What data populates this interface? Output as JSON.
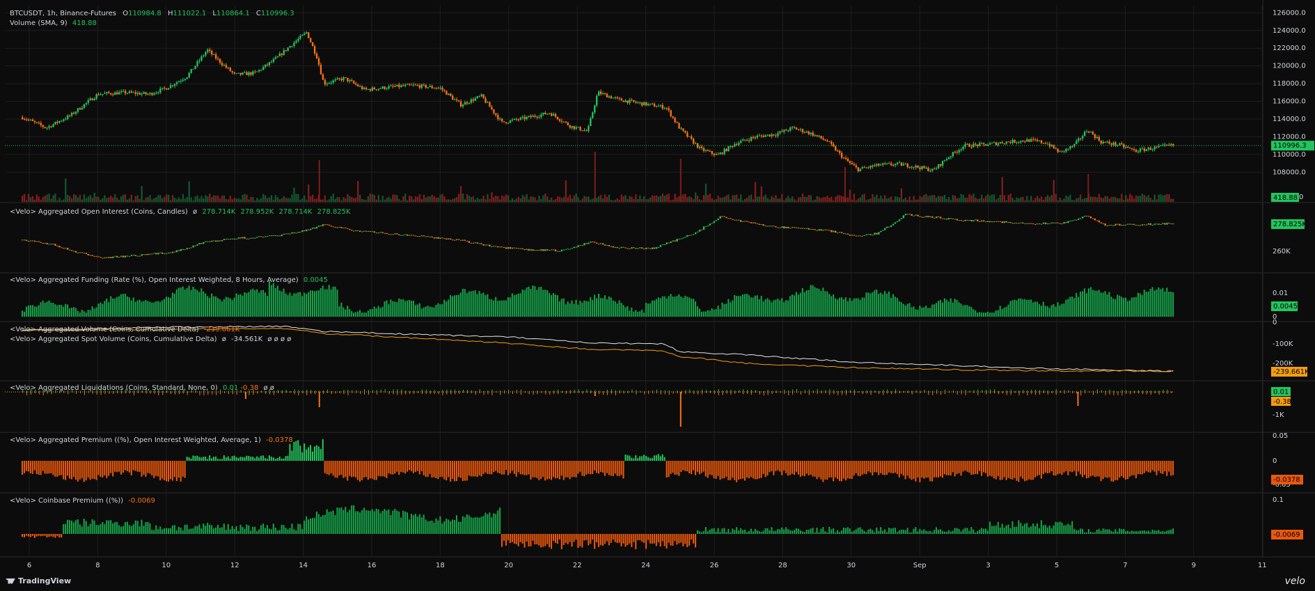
{
  "header": {
    "symbol": "BTCUSDT, 1h, Binance-Futures",
    "open_label": "O",
    "open": "110984.8",
    "high_label": "H",
    "high": "111022.1",
    "low_label": "L",
    "low": "110864.1",
    "close_label": "C",
    "close": "110996.3",
    "volume_title": "Volume (SMA, 9)",
    "volume_value": "418.88"
  },
  "legends": {
    "oi": {
      "title": "<Velo> Aggregated Open Interest (Coins, Candles)",
      "sym": "ø",
      "values": [
        "278.714K",
        "278.952K",
        "278.714K",
        "278.825K"
      ]
    },
    "funding": {
      "title": "<Velo> Aggregated Funding (Rate (%), Open Interest Weighted, 8 Hours, Average)",
      "value": "0.0045"
    },
    "volume_delta": {
      "title": "<Velo> Aggregated Volume (Coins, Cumulative Delta)",
      "value": "-239.661K"
    },
    "spot_delta": {
      "title": "<Velo> Aggregated Spot Volume (Coins, Cumulative Delta)",
      "sym": "ø",
      "value": "-34.561K",
      "zeros": "ø ø ø ø"
    },
    "liquidations": {
      "title": "<Velo> Aggregated Liquidations (Coins, Standard, None, 0)",
      "value1": "0.01",
      "value2": "-0.38",
      "zeros": "ø ø"
    },
    "premium": {
      "title": "<Velo> Aggregated Premium ((%), Open Interest Weighted, Average, 1)",
      "value": "-0.0378"
    },
    "coinbase": {
      "title": "<Velo> Coinbase Premium ((%))",
      "value": "-0.0069"
    }
  },
  "colors": {
    "bg": "#0c0c0c",
    "up": "#22c55e",
    "down": "#f97316",
    "grid": "#1e1e1e",
    "white_line": "#e5e5e5",
    "orange_line": "#f59e0b",
    "red_vol": "#7f1d1d",
    "green_vol": "#14532d"
  },
  "price_axis": {
    "ticks": [
      "126000.0",
      "124000.0",
      "122000.0",
      "120000.0",
      "118000.0",
      "116000.0",
      "114000.0",
      "112000.0",
      "110000.0",
      "108000.0"
    ],
    "current_tag": "110996.3",
    "volume_tag": "418.88",
    "volume_zero": "0"
  },
  "oi_axis": {
    "ticks": [
      "260K"
    ],
    "tag": "278.825K"
  },
  "funding_axis": {
    "ticks": [
      "0.01"
    ],
    "zero": "0",
    "tag": "0.0045"
  },
  "delta_axis": {
    "ticks": [
      "0",
      "-100K",
      "-200K"
    ],
    "tag": "-239.661K"
  },
  "liq_axis": {
    "ticks": [
      "-1K"
    ],
    "tag_up": "0.01",
    "tag_down": "-0.38"
  },
  "premium_axis": {
    "ticks": [
      "0.05",
      "0",
      "-0.05"
    ],
    "tag": "-0.0378"
  },
  "coinbase_axis": {
    "ticks": [
      "0.1",
      "0"
    ],
    "tag": "-0.0069"
  },
  "time_axis": {
    "labels": [
      "6",
      "8",
      "10",
      "12",
      "14",
      "16",
      "18",
      "20",
      "22",
      "24",
      "26",
      "28",
      "30",
      "Sep",
      "3",
      "5",
      "7",
      "9",
      "11"
    ]
  },
  "chart_data": {
    "type": "candlestick",
    "timeframe": "1h",
    "x_labels": [
      "6",
      "8",
      "10",
      "12",
      "14",
      "16",
      "18",
      "20",
      "22",
      "24",
      "26",
      "28",
      "30",
      "Sep",
      "3",
      "5",
      "7",
      "9",
      "11"
    ],
    "price_ylim": [
      107000,
      126500
    ],
    "price_path_approx": [
      {
        "x": "6",
        "y": 114200
      },
      {
        "x": "8",
        "y": 116800
      },
      {
        "x": "10",
        "y": 117500
      },
      {
        "x": "11",
        "y": 121500
      },
      {
        "x": "12",
        "y": 119000
      },
      {
        "x": "13",
        "y": 120800
      },
      {
        "x": "14",
        "y": 123800
      },
      {
        "x": "14.5",
        "y": 118000
      },
      {
        "x": "16",
        "y": 117300
      },
      {
        "x": "18",
        "y": 117500
      },
      {
        "x": "19",
        "y": 116500
      },
      {
        "x": "20",
        "y": 113500
      },
      {
        "x": "21",
        "y": 114700
      },
      {
        "x": "22",
        "y": 112500
      },
      {
        "x": "22.5",
        "y": 117000
      },
      {
        "x": "24",
        "y": 115500
      },
      {
        "x": "25",
        "y": 112500
      },
      {
        "x": "26",
        "y": 109800
      },
      {
        "x": "27",
        "y": 112000
      },
      {
        "x": "28",
        "y": 113000
      },
      {
        "x": "29",
        "y": 111500
      },
      {
        "x": "30",
        "y": 108300
      },
      {
        "x": "31",
        "y": 108700
      },
      {
        "x": "Sep 1",
        "y": 108000
      },
      {
        "x": "2",
        "y": 111000
      },
      {
        "x": "3",
        "y": 111300
      },
      {
        "x": "4",
        "y": 111500
      },
      {
        "x": "5",
        "y": 110200
      },
      {
        "x": "5.5",
        "y": 112800
      },
      {
        "x": "6",
        "y": 111000
      },
      {
        "x": "7",
        "y": 110400
      },
      {
        "x": "8",
        "y": 111000
      }
    ],
    "last_close": 110996.3,
    "series": [
      {
        "name": "Volume (SMA, 9)",
        "last": 418.88
      },
      {
        "name": "<Velo> Aggregated Open Interest (Coins, Candles)",
        "last": 278825
      },
      {
        "name": "<Velo> Aggregated Funding (Rate (%), Open Interest Weighted, 8 Hours, Average)",
        "last": 0.0045
      },
      {
        "name": "<Velo> Aggregated Volume (Coins, Cumulative Delta)",
        "last": -239661
      },
      {
        "name": "<Velo> Aggregated Spot Volume (Coins, Cumulative Delta)",
        "last": -34561
      },
      {
        "name": "<Velo> Aggregated Liquidations (Coins, Standard, None, 0)",
        "last_up": 0.01,
        "last_down": -0.38
      },
      {
        "name": "<Velo> Aggregated Premium ((%), Open Interest Weighted, Average, 1)",
        "last": -0.0378
      },
      {
        "name": "<Velo> Coinbase Premium ((%))",
        "last": -0.0069
      }
    ]
  },
  "branding": {
    "left": "TradingView",
    "right": "velo"
  }
}
